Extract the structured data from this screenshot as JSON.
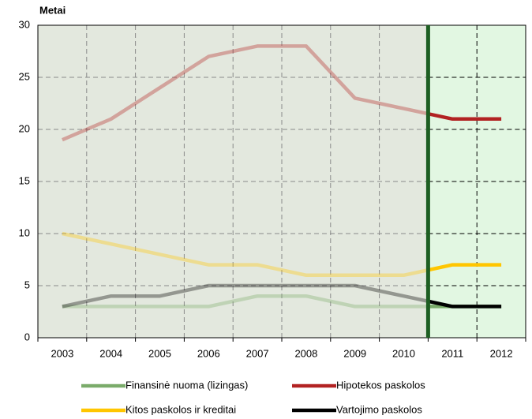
{
  "chart_data": {
    "type": "line",
    "y_axis_label": "Metai",
    "categories": [
      "2003",
      "2004",
      "2005",
      "2006",
      "2007",
      "2008",
      "2009",
      "2010",
      "2011",
      "2012"
    ],
    "series": [
      {
        "name": "Finansinė nuoma (lizingas)",
        "color": "#7aab6a",
        "values": [
          3,
          3,
          3,
          3,
          4,
          4,
          3,
          3,
          3,
          3
        ]
      },
      {
        "name": "Hipotekos paskolos",
        "color": "#b22222",
        "values": [
          19,
          21,
          24,
          27,
          28,
          28,
          23,
          22,
          21,
          21
        ]
      },
      {
        "name": "Kitos paskolos ir kreditai",
        "color": "#ffc600",
        "values": [
          10,
          9,
          8,
          7,
          7,
          6,
          6,
          6,
          7,
          7
        ]
      },
      {
        "name": "Vartojimo paskolos",
        "color": "#000000",
        "values": [
          3,
          4,
          4,
          5,
          5,
          5,
          5,
          4,
          3,
          3
        ]
      }
    ],
    "ylim": [
      0,
      30
    ],
    "yticks": [
      0,
      5,
      10,
      15,
      20,
      25,
      30
    ],
    "grid": true
  }
}
